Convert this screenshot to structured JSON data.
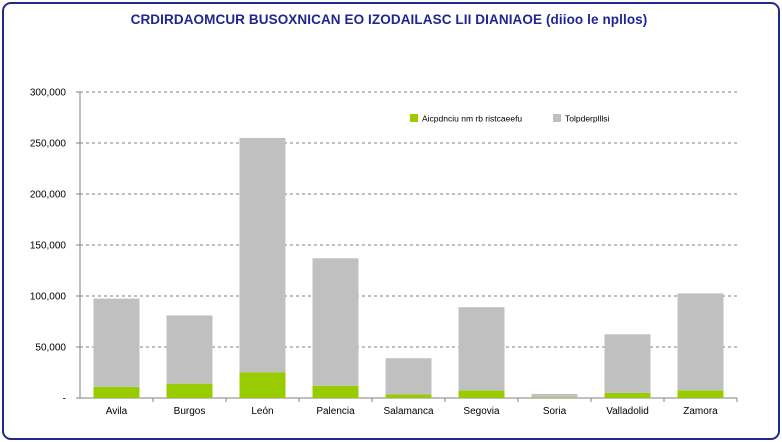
{
  "chart_data": {
    "type": "bar",
    "stacked": true,
    "title": "CRDIRDAOMCUR BUSOXNICAN EO IZODAILASC LII DIANIAOE  (diioo le npllos)",
    "categories": [
      "Avila",
      "Burgos",
      "León",
      "Palencia",
      "Salamanca",
      "Segovia",
      "Soria",
      "Valladolid",
      "Zamora"
    ],
    "series": [
      {
        "name": "Aicpdnciu nm rb ristcaeefu",
        "color": "#99cc00",
        "values": [
          11000,
          14000,
          25000,
          12000,
          3500,
          7500,
          500,
          5000,
          7500
        ]
      },
      {
        "name": "Tolpderplllsi",
        "color": "#c0c0c0",
        "values": [
          86500,
          67000,
          230000,
          125000,
          35500,
          81500,
          3500,
          57500,
          95000
        ]
      }
    ],
    "ylim": [
      0,
      300000
    ],
    "yticks": [
      0,
      50000,
      100000,
      150000,
      200000,
      250000,
      300000
    ],
    "ytick_labels": [
      "-",
      "50,000",
      "100,000",
      "150,000",
      "200,000",
      "250,000",
      "300,000"
    ],
    "grid": "horizontal-dashed",
    "legend_position": "top-right"
  }
}
